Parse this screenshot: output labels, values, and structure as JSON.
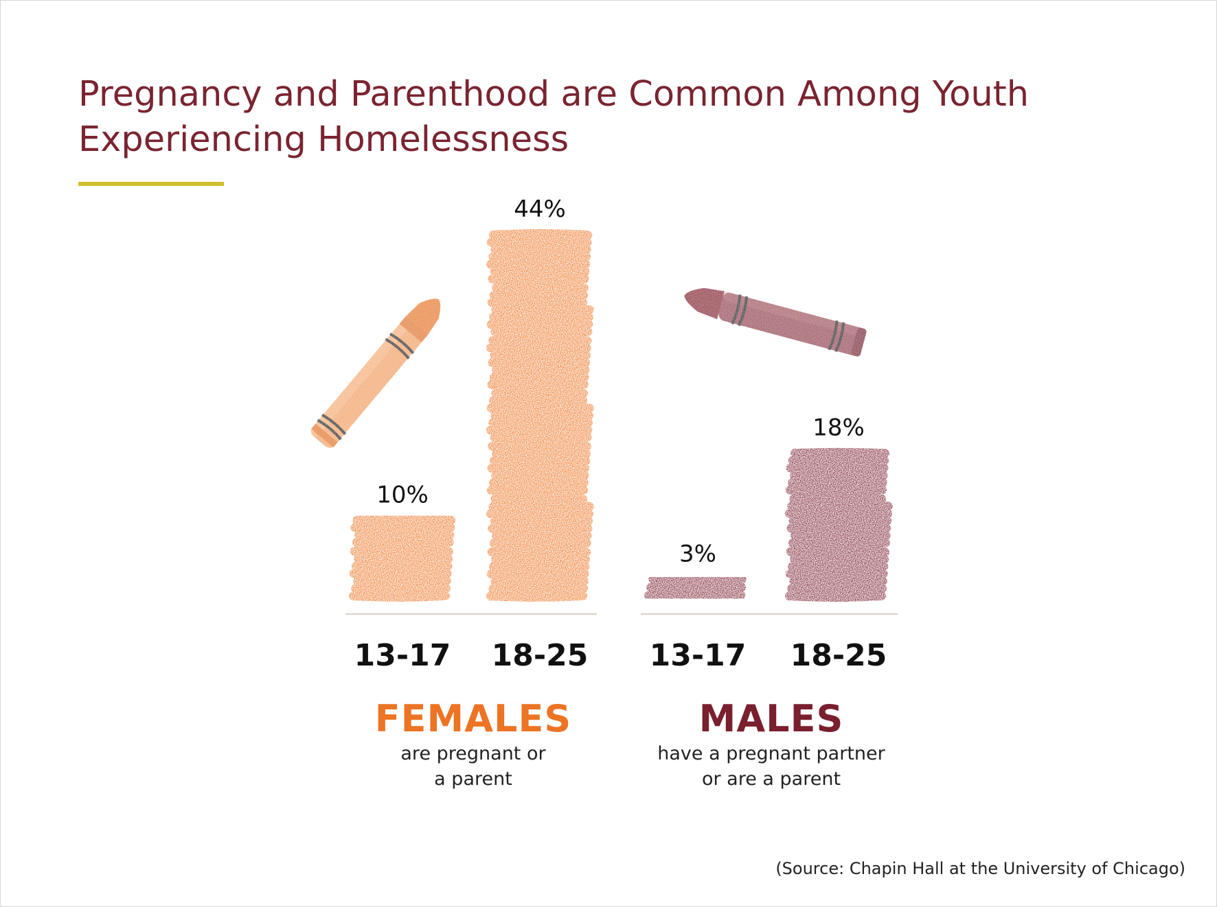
{
  "title": "Pregnancy and Parenthood are Common Among Youth Experiencing Homelessness",
  "source": "(Source: Chapin Hall at the University of Chicago)",
  "colors": {
    "title": "#7a2431",
    "accent_rule": "#cdc12e",
    "females": "#ec7424",
    "males": "#7a1f2e"
  },
  "chart_data": {
    "type": "bar",
    "categories": [
      "13-17",
      "18-25"
    ],
    "ylim": [
      0,
      44
    ],
    "grid": false,
    "series": [
      {
        "name": "FEMALES",
        "description": [
          "are pregnant or",
          "a parent"
        ],
        "color": "#ec7424",
        "values": [
          10,
          44
        ],
        "labels": [
          "10%",
          "44%"
        ],
        "icon": "orange-crayon-icon"
      },
      {
        "name": "MALES",
        "description": [
          "have a pregnant partner",
          "or are a parent"
        ],
        "color": "#7a1f2e",
        "values": [
          3,
          18
        ],
        "labels": [
          "3%",
          "18%"
        ],
        "icon": "maroon-crayon-icon"
      }
    ]
  }
}
